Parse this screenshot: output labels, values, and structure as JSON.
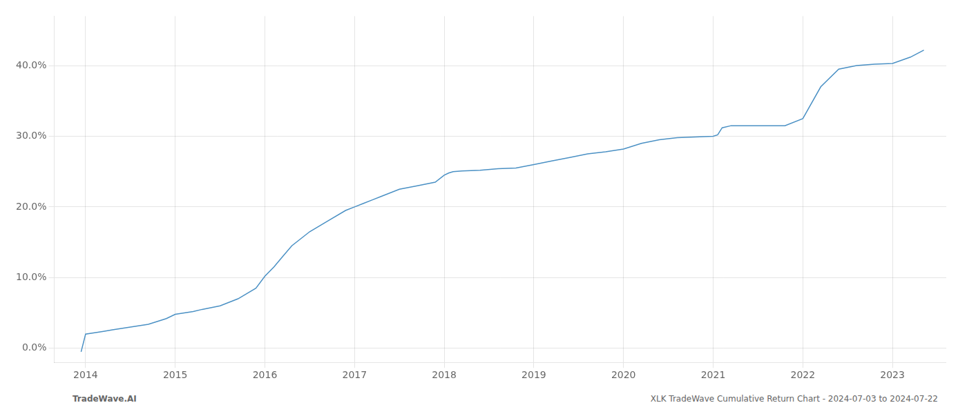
{
  "chart_data": {
    "type": "line",
    "x": [
      2013.95,
      2014.0,
      2014.1,
      2014.2,
      2014.3,
      2014.5,
      2014.7,
      2014.9,
      2015.0,
      2015.1,
      2015.2,
      2015.3,
      2015.5,
      2015.7,
      2015.9,
      2016.0,
      2016.1,
      2016.2,
      2016.3,
      2016.5,
      2016.7,
      2016.9,
      2017.0,
      2017.1,
      2017.2,
      2017.3,
      2017.5,
      2017.7,
      2017.9,
      2018.0,
      2018.05,
      2018.1,
      2018.2,
      2018.4,
      2018.6,
      2018.8,
      2019.0,
      2019.2,
      2019.4,
      2019.6,
      2019.8,
      2020.0,
      2020.2,
      2020.4,
      2020.6,
      2020.8,
      2021.0,
      2021.05,
      2021.1,
      2021.2,
      2021.4,
      2021.6,
      2021.8,
      2022.0,
      2022.2,
      2022.4,
      2022.6,
      2022.8,
      2023.0,
      2023.2,
      2023.35
    ],
    "values": [
      -0.5,
      2.0,
      2.2,
      2.4,
      2.6,
      3.0,
      3.4,
      4.2,
      4.8,
      5.0,
      5.2,
      5.5,
      6.0,
      7.0,
      8.5,
      10.2,
      11.5,
      13.0,
      14.5,
      16.5,
      18.0,
      19.5,
      20.0,
      20.5,
      21.0,
      21.5,
      22.5,
      23.0,
      23.5,
      24.5,
      24.8,
      25.0,
      25.1,
      25.2,
      25.4,
      25.5,
      26.0,
      26.5,
      27.0,
      27.5,
      27.8,
      28.2,
      29.0,
      29.5,
      29.8,
      29.9,
      30.0,
      30.2,
      31.2,
      31.5,
      31.5,
      31.5,
      31.5,
      32.5,
      37.0,
      39.5,
      40.0,
      40.2,
      40.3,
      41.2,
      42.2
    ],
    "color": "#4a90c4",
    "xlim": [
      2013.65,
      2023.6
    ],
    "xticks": [
      2014,
      2015,
      2016,
      2017,
      2018,
      2019,
      2020,
      2021,
      2022,
      2023
    ],
    "ylim": [
      -2,
      47
    ],
    "yticks": [
      {
        "value": 0.0,
        "label": "0.0%"
      },
      {
        "value": 10.0,
        "label": "10.0%"
      },
      {
        "value": 20.0,
        "label": "20.0%"
      },
      {
        "value": 30.0,
        "label": "30.0%"
      },
      {
        "value": 40.0,
        "label": "40.0%"
      }
    ],
    "grid": true,
    "annotations": [
      "TradeWave.AI",
      "XLK TradeWave Cumulative Return Chart - 2024-07-03 to 2024-07-22"
    ]
  }
}
